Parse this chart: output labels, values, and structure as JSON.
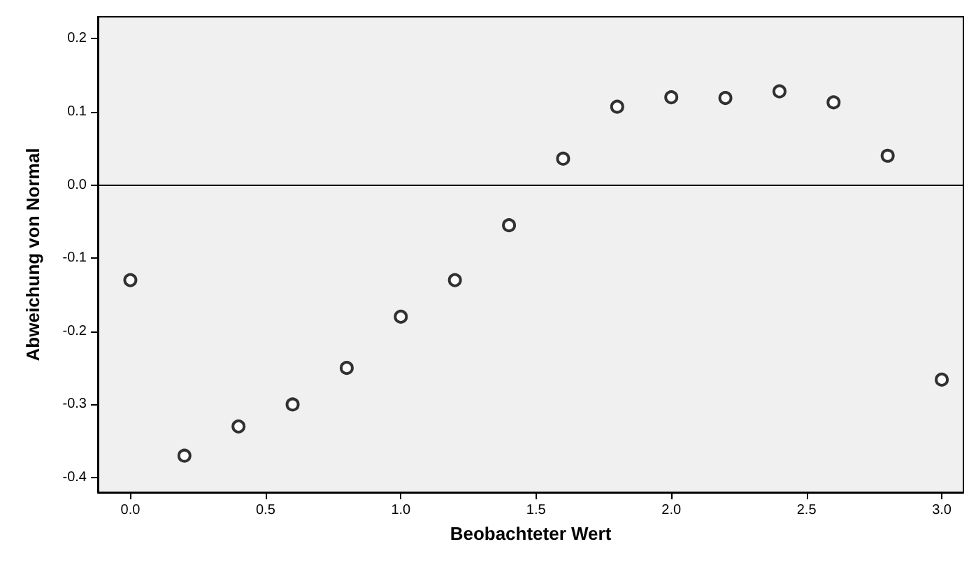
{
  "chart_data": {
    "type": "scatter",
    "xlabel": "Beobachteter Wert",
    "ylabel": "Abweichung von Normal",
    "x": [
      0.0,
      0.2,
      0.4,
      0.6,
      0.8,
      1.0,
      1.2,
      1.4,
      1.6,
      1.8,
      2.0,
      2.2,
      2.4,
      2.6,
      2.8,
      3.0
    ],
    "series": [
      {
        "color": "#000000",
        "values": [
          -0.13,
          -0.37,
          -0.33,
          -0.3,
          -0.25,
          -0.18,
          -0.13,
          -0.055,
          0.036,
          0.107,
          0.12,
          0.119,
          0.128,
          0.113,
          0.04,
          -0.266
        ]
      }
    ],
    "xlim": [
      -0.12,
      3.08
    ],
    "ylim": [
      -0.42,
      0.23
    ],
    "xticks": [
      {
        "value": 0,
        "label": "0.0"
      },
      0.5,
      {
        "value": 1,
        "label": "1.0"
      },
      1.5,
      {
        "value": 2,
        "label": "2.0"
      },
      2.5,
      {
        "value": 3,
        "label": "3.0"
      }
    ],
    "yticks": [
      -0.4,
      -0.3,
      -0.2,
      -0.1,
      {
        "value": 0,
        "label": "0.0"
      },
      0.1,
      0.2
    ],
    "ref_lines": [
      {
        "axis": "y",
        "value": 0,
        "color": "#000000"
      }
    ],
    "marker": "circle"
  }
}
